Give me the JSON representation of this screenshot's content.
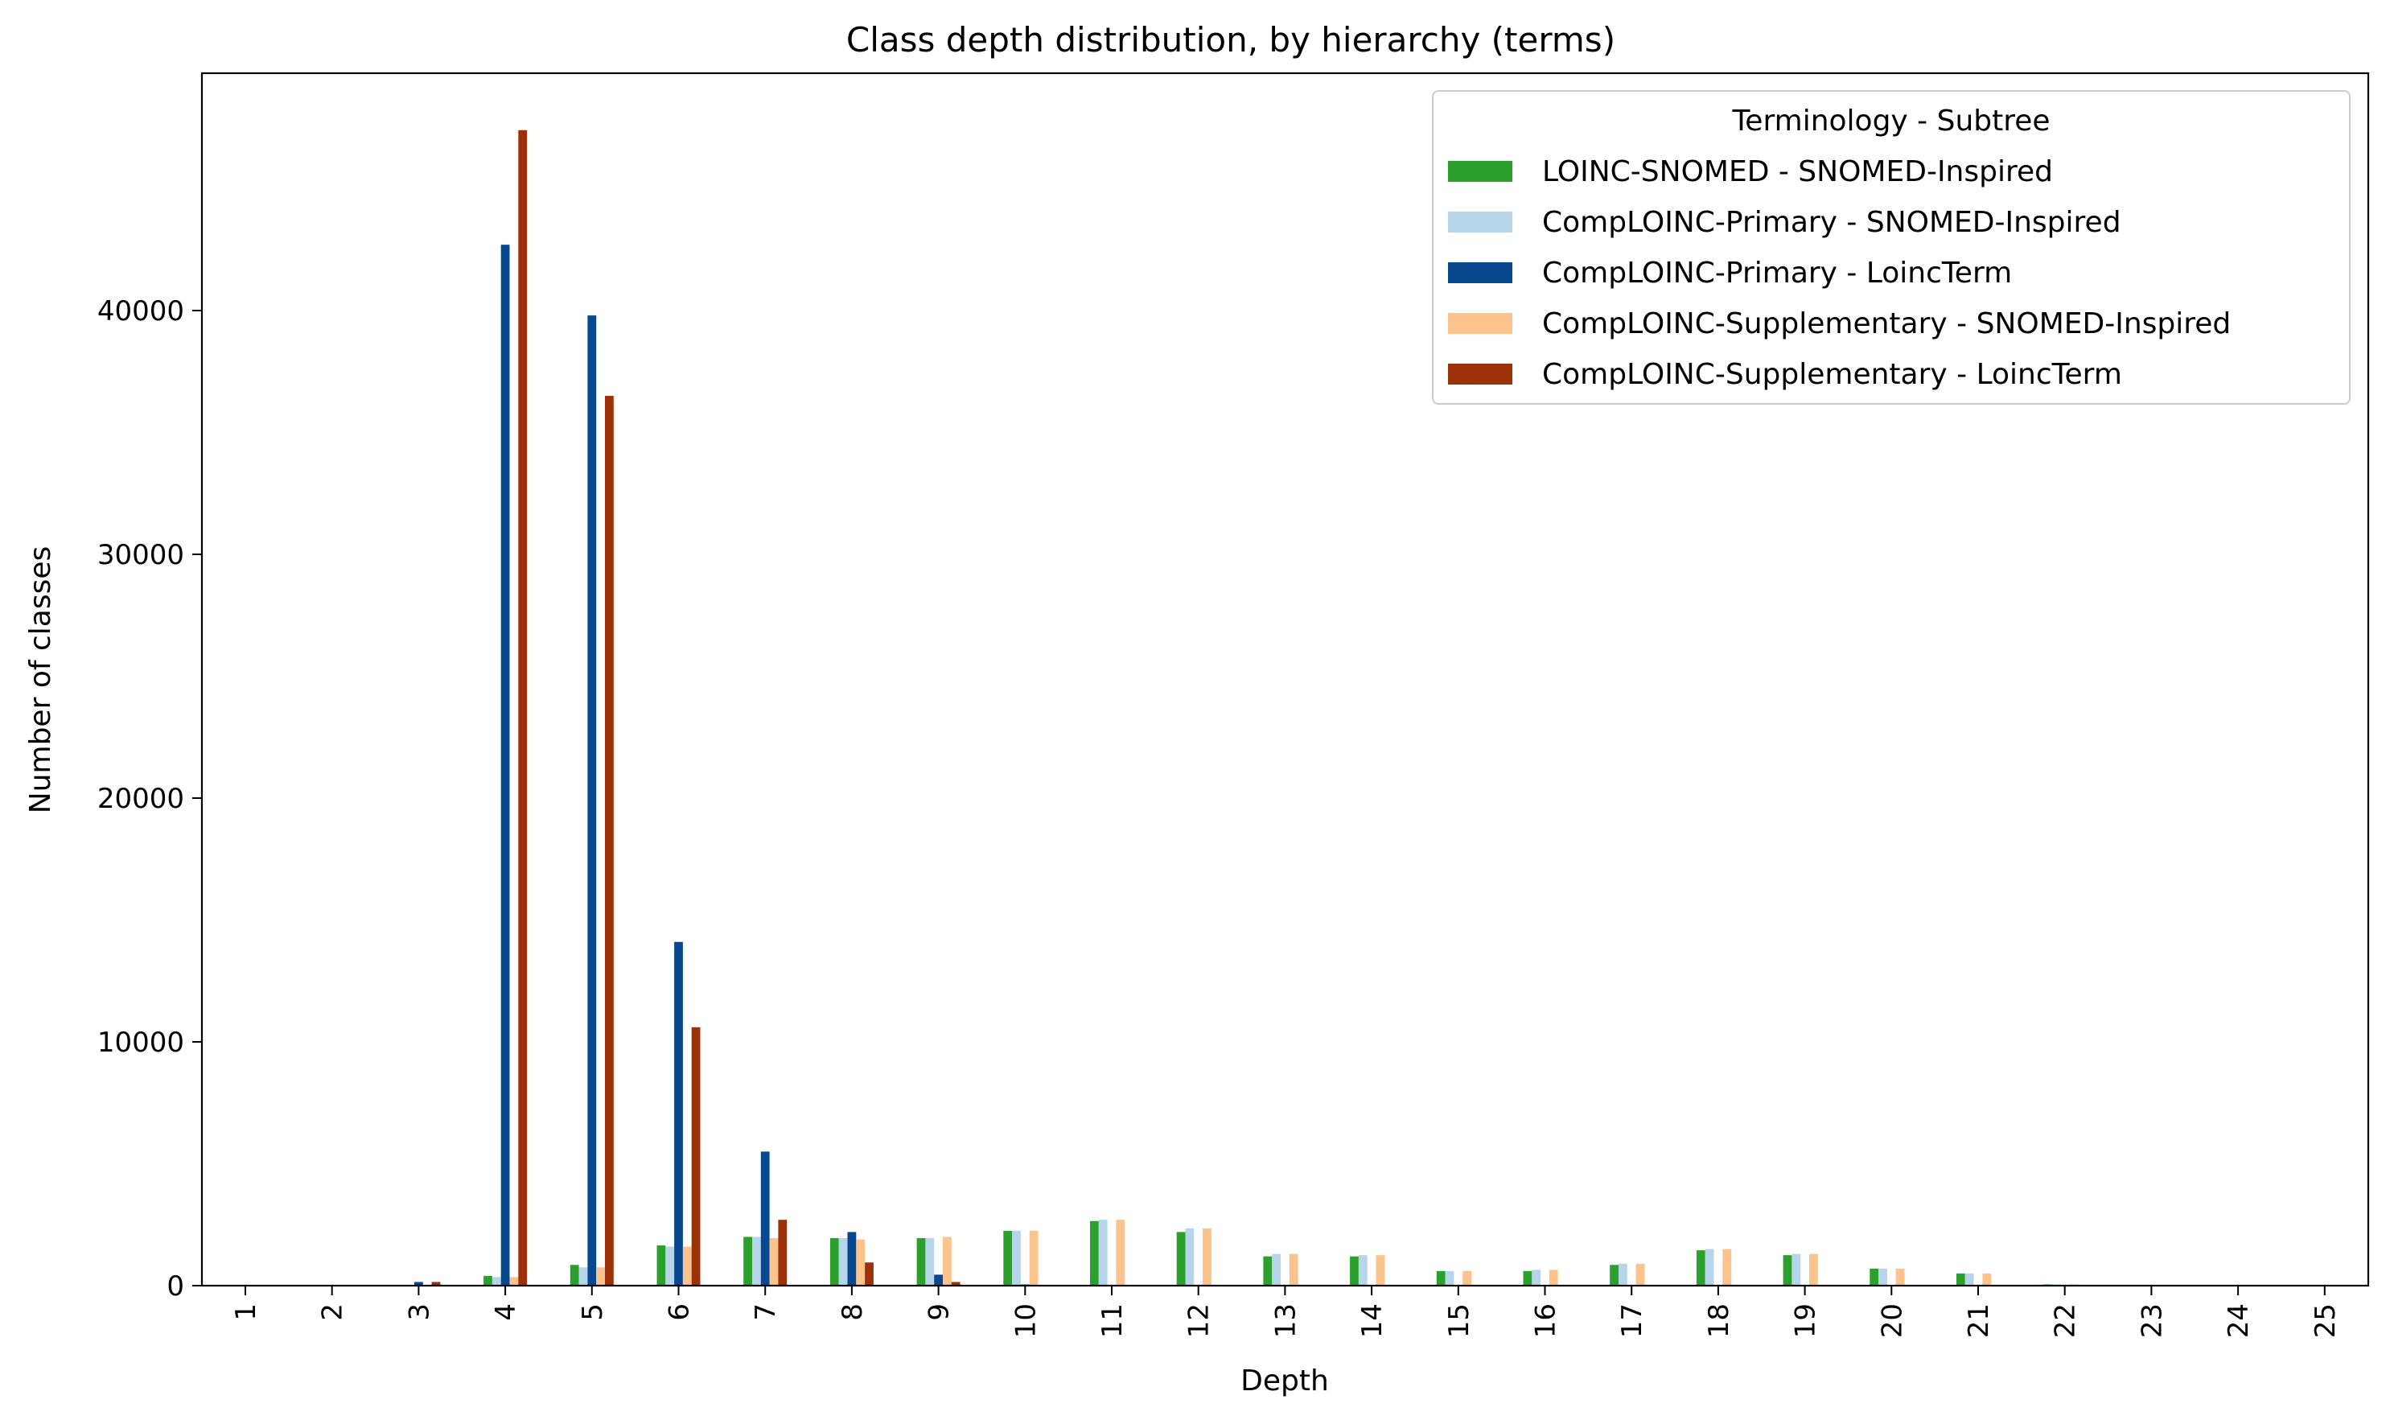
{
  "chart_data": {
    "type": "bar",
    "title": "Class depth distribution, by hierarchy (terms)",
    "xlabel": "Depth",
    "ylabel": "Number of classes",
    "ylim": [
      0,
      50000
    ],
    "yticks": [
      0,
      10000,
      20000,
      30000,
      40000
    ],
    "legend": {
      "title": "Terminology - Subtree",
      "placement": "top-right"
    },
    "categories": [
      "1",
      "2",
      "3",
      "4",
      "5",
      "6",
      "7",
      "8",
      "9",
      "10",
      "11",
      "12",
      "13",
      "14",
      "15",
      "16",
      "17",
      "18",
      "19",
      "20",
      "21",
      "22",
      "23",
      "24",
      "25"
    ],
    "series": [
      {
        "name": "LOINC-SNOMED - SNOMED-Inspired",
        "color": "#2ca02c",
        "values": [
          0,
          0,
          30,
          400,
          850,
          1650,
          2000,
          1950,
          1950,
          2250,
          2650,
          2200,
          1200,
          1200,
          600,
          600,
          850,
          1450,
          1250,
          700,
          500,
          50,
          0,
          0,
          0
        ]
      },
      {
        "name": "CompLOINC-Primary - SNOMED-Inspired",
        "color": "#b6d4ea",
        "values": [
          0,
          0,
          30,
          350,
          750,
          1600,
          2000,
          1950,
          1950,
          2250,
          2700,
          2350,
          1300,
          1250,
          600,
          650,
          900,
          1500,
          1300,
          700,
          500,
          50,
          0,
          0,
          0
        ]
      },
      {
        "name": "CompLOINC-Primary - LoincTerm",
        "color": "#08488e",
        "values": [
          0,
          0,
          150,
          42700,
          39800,
          14100,
          5500,
          2200,
          450,
          50,
          0,
          0,
          0,
          0,
          0,
          0,
          0,
          0,
          0,
          0,
          0,
          0,
          0,
          0,
          0
        ]
      },
      {
        "name": "CompLOINC-Supplementary - SNOMED-Inspired",
        "color": "#fdc38d",
        "values": [
          0,
          0,
          30,
          350,
          750,
          1600,
          1950,
          1900,
          2000,
          2250,
          2700,
          2350,
          1300,
          1250,
          600,
          650,
          900,
          1500,
          1300,
          700,
          500,
          50,
          0,
          0,
          0
        ]
      },
      {
        "name": "CompLOINC-Supplementary - LoincTerm",
        "color": "#9c3109",
        "values": [
          0,
          0,
          150,
          47400,
          36500,
          10600,
          2700,
          950,
          150,
          20,
          0,
          0,
          0,
          0,
          0,
          0,
          0,
          0,
          0,
          0,
          0,
          0,
          0,
          0,
          0
        ]
      }
    ]
  }
}
